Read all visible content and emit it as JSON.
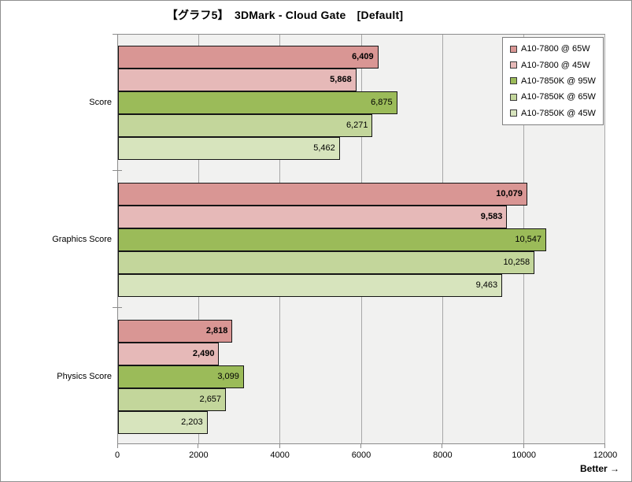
{
  "title": "【グラフ5】　3DMark - Cloud Gate　[Default]",
  "better_note": "Better →",
  "colors": {
    "plot_background": "#f1f1f0",
    "gridline": "#a8a8a8",
    "axis_line": "#8c8c8c",
    "bar_border": "#151515",
    "frame_border": "#8f8f8f"
  },
  "chart_data": {
    "type": "bar",
    "orientation": "horizontal",
    "title": "【グラフ5】　3DMark - Cloud Gate　[Default]",
    "categories": [
      "Score",
      "Graphics Score",
      "Physics Score"
    ],
    "series": [
      {
        "name": "A10-7800 @ 65W",
        "color": "#D99694",
        "bold_labels": true,
        "values": [
          6409,
          10079,
          2818
        ]
      },
      {
        "name": "A10-7800 @ 45W",
        "color": "#E6B9B8",
        "bold_labels": true,
        "values": [
          5868,
          9583,
          2490
        ]
      },
      {
        "name": "A10-7850K @ 95W",
        "color": "#9BBB59",
        "bold_labels": false,
        "values": [
          6875,
          10547,
          3099
        ]
      },
      {
        "name": "A10-7850K @ 65W",
        "color": "#C3D69B",
        "bold_labels": false,
        "values": [
          6271,
          10258,
          2657
        ]
      },
      {
        "name": "A10-7850K @ 45W",
        "color": "#D7E4BD",
        "bold_labels": false,
        "values": [
          5462,
          9463,
          2203
        ]
      }
    ],
    "xlabel": "",
    "ylabel": "",
    "xlim": [
      0,
      12000
    ],
    "x_ticks": [
      0,
      2000,
      4000,
      6000,
      8000,
      10000,
      12000
    ],
    "grid": "vertical",
    "legend_position": "top-right",
    "value_labels": "inside-end, thousands-separated"
  }
}
